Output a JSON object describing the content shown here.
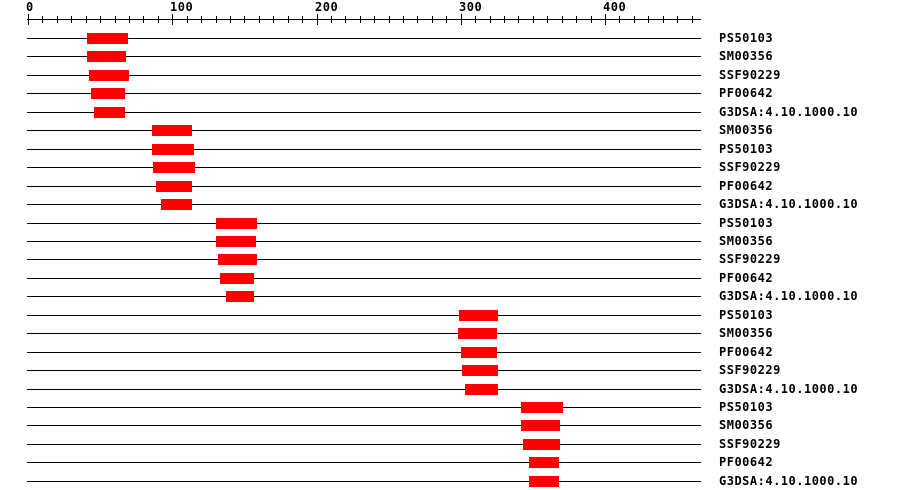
{
  "chart_data": {
    "type": "bar",
    "subtype": "protein-domain-feature-plot",
    "title": "",
    "xlabel": "",
    "ylabel": "",
    "legend_position": "none",
    "grid": false,
    "x_axis": {
      "min": 0,
      "max": 466,
      "major_ticks": [
        0,
        100,
        200,
        300,
        400
      ],
      "major_tick_labels": [
        "0",
        "100",
        "200",
        "300",
        "400"
      ],
      "minor_tick_interval": 10
    },
    "rows": [
      {
        "label": "PS50103",
        "start": 41,
        "end": 69
      },
      {
        "label": "SM00356",
        "start": 41,
        "end": 68
      },
      {
        "label": "SSF90229",
        "start": 42,
        "end": 70
      },
      {
        "label": "PF00642",
        "start": 44,
        "end": 67
      },
      {
        "label": "G3DSA:4.10.1000.10",
        "start": 46,
        "end": 67
      },
      {
        "label": "SM00356",
        "start": 86,
        "end": 114
      },
      {
        "label": "PS50103",
        "start": 86,
        "end": 115
      },
      {
        "label": "SSF90229",
        "start": 87,
        "end": 116
      },
      {
        "label": "PF00642",
        "start": 89,
        "end": 114
      },
      {
        "label": "G3DSA:4.10.1000.10",
        "start": 92,
        "end": 114
      },
      {
        "label": "PS50103",
        "start": 130,
        "end": 159
      },
      {
        "label": "SM00356",
        "start": 130,
        "end": 158
      },
      {
        "label": "SSF90229",
        "start": 132,
        "end": 159
      },
      {
        "label": "PF00642",
        "start": 133,
        "end": 157
      },
      {
        "label": "G3DSA:4.10.1000.10",
        "start": 137,
        "end": 157
      },
      {
        "label": "PS50103",
        "start": 299,
        "end": 326
      },
      {
        "label": "SM00356",
        "start": 298,
        "end": 325
      },
      {
        "label": "PF00642",
        "start": 300,
        "end": 325
      },
      {
        "label": "SSF90229",
        "start": 301,
        "end": 326
      },
      {
        "label": "G3DSA:4.10.1000.10",
        "start": 303,
        "end": 326
      },
      {
        "label": "PS50103",
        "start": 342,
        "end": 371
      },
      {
        "label": "SM00356",
        "start": 342,
        "end": 369
      },
      {
        "label": "SSF90229",
        "start": 343,
        "end": 369
      },
      {
        "label": "PF00642",
        "start": 347,
        "end": 368
      },
      {
        "label": "G3DSA:4.10.1000.10",
        "start": 347,
        "end": 368
      }
    ]
  },
  "colors": {
    "bar": "#ff0000",
    "axis": "#000000",
    "text": "#000000",
    "background": "#ffffff"
  }
}
